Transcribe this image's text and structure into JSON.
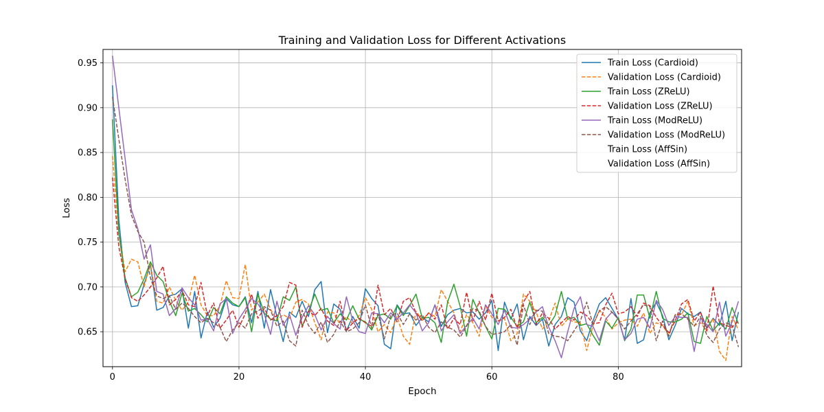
{
  "chart_data": {
    "type": "line",
    "title": "Training and Validation Loss for Different Activations",
    "xlabel": "Epoch",
    "ylabel": "Loss",
    "xlim": [
      -1.5,
      99.5
    ],
    "ylim": [
      0.611,
      0.965
    ],
    "xticks": [
      0,
      20,
      40,
      60,
      80
    ],
    "yticks": [
      0.65,
      0.7,
      0.75,
      0.8,
      0.85,
      0.9,
      0.95
    ],
    "ytick_labels": [
      "0.65",
      "0.70",
      "0.75",
      "0.80",
      "0.85",
      "0.90",
      "0.95"
    ],
    "grid": true,
    "legend_position": "top-right",
    "series": [
      {
        "name": "Train Loss (Cardioid)",
        "color": "#1f77b4",
        "dash": "solid",
        "values": [
          0.925,
          0.775,
          0.705,
          0.678,
          0.679,
          0.703,
          0.725,
          0.674,
          0.677,
          0.69,
          0.692,
          0.698,
          0.654,
          0.695,
          0.643,
          0.672,
          0.655,
          0.665,
          0.687,
          0.68,
          0.678,
          0.689,
          0.66,
          0.695,
          0.654,
          0.697,
          0.667,
          0.639,
          0.672,
          0.666,
          0.684,
          0.667,
          0.697,
          0.706,
          0.649,
          0.681,
          0.675,
          0.651,
          0.667,
          0.654,
          0.698,
          0.687,
          0.679,
          0.636,
          0.631,
          0.68,
          0.67,
          0.671,
          0.657,
          0.666,
          0.661,
          0.68,
          0.656,
          0.669,
          0.674,
          0.676,
          0.671,
          0.672,
          0.664,
          0.671,
          0.685,
          0.629,
          0.683,
          0.664,
          0.681,
          0.641,
          0.667,
          0.657,
          0.664,
          0.634,
          0.658,
          0.667,
          0.688,
          0.683,
          0.651,
          0.64,
          0.662,
          0.681,
          0.688,
          0.676,
          0.664,
          0.641,
          0.687,
          0.637,
          0.641,
          0.671,
          0.683,
          0.668,
          0.641,
          0.657,
          0.676,
          0.67,
          0.667,
          0.672,
          0.654,
          0.665,
          0.657,
          0.684,
          0.64,
          0.672
        ]
      },
      {
        "name": "Validation Loss (Cardioid)",
        "color": "#ff7f0e",
        "dash": "dashed",
        "values": [
          0.846,
          0.76,
          0.717,
          0.731,
          0.728,
          0.7,
          0.726,
          0.684,
          0.682,
          0.7,
          0.685,
          0.674,
          0.683,
          0.713,
          0.68,
          0.668,
          0.668,
          0.679,
          0.707,
          0.688,
          0.687,
          0.725,
          0.674,
          0.683,
          0.692,
          0.675,
          0.663,
          0.669,
          0.665,
          0.683,
          0.686,
          0.681,
          0.66,
          0.641,
          0.672,
          0.671,
          0.658,
          0.667,
          0.659,
          0.668,
          0.688,
          0.675,
          0.65,
          0.658,
          0.649,
          0.667,
          0.645,
          0.636,
          0.673,
          0.663,
          0.671,
          0.667,
          0.697,
          0.684,
          0.671,
          0.65,
          0.669,
          0.66,
          0.645,
          0.679,
          0.666,
          0.661,
          0.665,
          0.64,
          0.648,
          0.692,
          0.684,
          0.672,
          0.653,
          0.662,
          0.682,
          0.656,
          0.664,
          0.661,
          0.66,
          0.629,
          0.657,
          0.674,
          0.666,
          0.653,
          0.66,
          0.663,
          0.664,
          0.656,
          0.671,
          0.648,
          0.66,
          0.657,
          0.646,
          0.669,
          0.669,
          0.684,
          0.657,
          0.66,
          0.651,
          0.665,
          0.628,
          0.618,
          0.667,
          0.652
        ]
      },
      {
        "name": "Train Loss (ZReLU)",
        "color": "#2ca02c",
        "dash": "solid",
        "values": [
          0.887,
          0.76,
          0.71,
          0.689,
          0.694,
          0.709,
          0.728,
          0.713,
          0.706,
          0.684,
          0.668,
          0.693,
          0.673,
          0.676,
          0.669,
          0.661,
          0.677,
          0.67,
          0.689,
          0.682,
          0.678,
          0.688,
          0.65,
          0.692,
          0.671,
          0.664,
          0.662,
          0.689,
          0.685,
          0.7,
          0.656,
          0.673,
          0.692,
          0.674,
          0.676,
          0.66,
          0.67,
          0.663,
          0.679,
          0.664,
          0.661,
          0.652,
          0.668,
          0.67,
          0.664,
          0.679,
          0.668,
          0.679,
          0.692,
          0.665,
          0.666,
          0.66,
          0.638,
          0.683,
          0.703,
          0.678,
          0.645,
          0.686,
          0.671,
          0.656,
          0.642,
          0.676,
          0.675,
          0.666,
          0.656,
          0.661,
          0.683,
          0.66,
          0.666,
          0.657,
          0.668,
          0.695,
          0.664,
          0.666,
          0.657,
          0.659,
          0.646,
          0.635,
          0.662,
          0.654,
          0.666,
          0.64,
          0.653,
          0.691,
          0.691,
          0.665,
          0.695,
          0.665,
          0.661,
          0.661,
          0.664,
          0.671,
          0.639,
          0.637,
          0.667,
          0.651,
          0.66,
          0.653,
          0.677,
          0.659
        ]
      },
      {
        "name": "Validation Loss (ZReLU)",
        "color": "#d62728",
        "dash": "dashed",
        "values": [
          0.822,
          0.745,
          0.709,
          0.688,
          0.684,
          0.691,
          0.7,
          0.71,
          0.723,
          0.68,
          0.686,
          0.696,
          0.68,
          0.678,
          0.705,
          0.668,
          0.682,
          0.654,
          0.663,
          0.674,
          0.655,
          0.67,
          0.692,
          0.665,
          0.676,
          0.663,
          0.668,
          0.678,
          0.705,
          0.702,
          0.655,
          0.673,
          0.668,
          0.676,
          0.662,
          0.657,
          0.684,
          0.651,
          0.66,
          0.665,
          0.66,
          0.656,
          0.702,
          0.669,
          0.676,
          0.661,
          0.684,
          0.688,
          0.671,
          0.662,
          0.671,
          0.664,
          0.68,
          0.653,
          0.665,
          0.658,
          0.694,
          0.662,
          0.684,
          0.663,
          0.693,
          0.662,
          0.666,
          0.675,
          0.654,
          0.683,
          0.695,
          0.658,
          0.671,
          0.665,
          0.653,
          0.66,
          0.667,
          0.663,
          0.672,
          0.668,
          0.659,
          0.66,
          0.68,
          0.693,
          0.67,
          0.672,
          0.678,
          0.667,
          0.682,
          0.679,
          0.666,
          0.657,
          0.649,
          0.662,
          0.681,
          0.686,
          0.662,
          0.672,
          0.651,
          0.701,
          0.66,
          0.657,
          0.655,
          0.662
        ]
      },
      {
        "name": "Train Loss (ModReLU)",
        "color": "#9467bd",
        "dash": "solid",
        "values": [
          0.958,
          0.9,
          0.843,
          0.786,
          0.765,
          0.731,
          0.747,
          0.695,
          0.692,
          0.668,
          0.676,
          0.699,
          0.688,
          0.68,
          0.663,
          0.664,
          0.651,
          0.681,
          0.687,
          0.648,
          0.664,
          0.675,
          0.687,
          0.681,
          0.67,
          0.647,
          0.684,
          0.657,
          0.669,
          0.646,
          0.666,
          0.679,
          0.669,
          0.652,
          0.667,
          0.659,
          0.653,
          0.689,
          0.662,
          0.65,
          0.648,
          0.671,
          0.67,
          0.66,
          0.671,
          0.664,
          0.671,
          0.68,
          0.671,
          0.651,
          0.66,
          0.68,
          0.651,
          0.661,
          0.669,
          0.648,
          0.657,
          0.665,
          0.653,
          0.68,
          0.67,
          0.658,
          0.674,
          0.655,
          0.654,
          0.658,
          0.664,
          0.672,
          0.678,
          0.655,
          0.64,
          0.621,
          0.65,
          0.676,
          0.689,
          0.658,
          0.656,
          0.64,
          0.664,
          0.672,
          0.664,
          0.641,
          0.648,
          0.664,
          0.666,
          0.654,
          0.685,
          0.675,
          0.657,
          0.667,
          0.666,
          0.666,
          0.628,
          0.665,
          0.658,
          0.65,
          0.683,
          0.645,
          0.661,
          0.684
        ]
      },
      {
        "name": "Validation Loss (ModReLU)",
        "color": "#8c564b",
        "dash": "dashed",
        "values": [
          0.912,
          0.865,
          0.82,
          0.78,
          0.762,
          0.75,
          0.71,
          0.69,
          0.687,
          0.69,
          0.675,
          0.682,
          0.676,
          0.667,
          0.66,
          0.665,
          0.66,
          0.655,
          0.639,
          0.652,
          0.66,
          0.654,
          0.67,
          0.673,
          0.678,
          0.674,
          0.656,
          0.662,
          0.64,
          0.634,
          0.674,
          0.657,
          0.648,
          0.661,
          0.638,
          0.647,
          0.662,
          0.65,
          0.653,
          0.66,
          0.68,
          0.654,
          0.67,
          0.642,
          0.668,
          0.671,
          0.658,
          0.67,
          0.663,
          0.669,
          0.655,
          0.649,
          0.661,
          0.655,
          0.652,
          0.644,
          0.656,
          0.676,
          0.673,
          0.656,
          0.647,
          0.648,
          0.65,
          0.658,
          0.635,
          0.68,
          0.658,
          0.674,
          0.673,
          0.648,
          0.645,
          0.644,
          0.64,
          0.651,
          0.662,
          0.683,
          0.658,
          0.673,
          0.678,
          0.672,
          0.664,
          0.653,
          0.662,
          0.67,
          0.68,
          0.678,
          0.64,
          0.662,
          0.645,
          0.669,
          0.67,
          0.664,
          0.656,
          0.667,
          0.646,
          0.638,
          0.653,
          0.66,
          0.657,
          0.633
        ]
      },
      {
        "name": "Train Loss (AffSin)",
        "color": "#ffffff",
        "dash": "solid",
        "values": []
      },
      {
        "name": "Validation Loss (AffSin)",
        "color": "#ffffff",
        "dash": "dashed",
        "values": []
      }
    ]
  }
}
